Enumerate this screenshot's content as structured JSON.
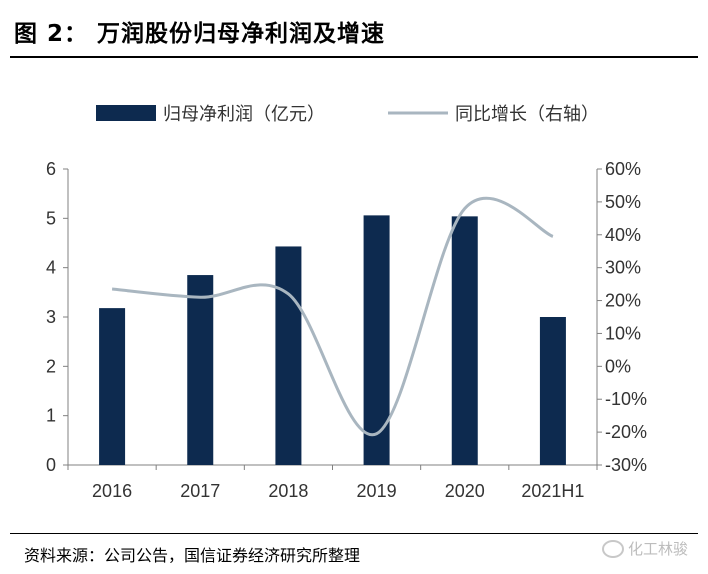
{
  "header": {
    "title": "图 2：  万润股份归母净利润及增速"
  },
  "footer": {
    "source": "资料来源：公司公告，国信证券经济研究所整理",
    "watermark": "化工林骏"
  },
  "chart_data": {
    "type": "bar",
    "categories": [
      "2016",
      "2017",
      "2018",
      "2019",
      "2020",
      "2021H1"
    ],
    "series": [
      {
        "name": "归母净利润（亿元）",
        "type": "bar",
        "axis": "left",
        "color": "#0d2a4f",
        "values": [
          3.18,
          3.85,
          4.43,
          5.06,
          5.04,
          3.0
        ]
      },
      {
        "name": "同比增长（右轴）",
        "type": "line",
        "axis": "right",
        "color": "#a9b6c0",
        "values": [
          23.5,
          21.0,
          22.0,
          -20.5,
          48.0,
          39.5
        ]
      }
    ],
    "ylim_left": [
      0,
      6
    ],
    "yticks_left": [
      "0",
      "1",
      "2",
      "3",
      "4",
      "5",
      "6"
    ],
    "ylim_right": [
      -30,
      60
    ],
    "yticks_right": [
      "-30%",
      "-20%",
      "-10%",
      "0%",
      "10%",
      "20%",
      "30%",
      "40%",
      "50%",
      "60%"
    ],
    "legend_position": "top",
    "grid": false
  }
}
